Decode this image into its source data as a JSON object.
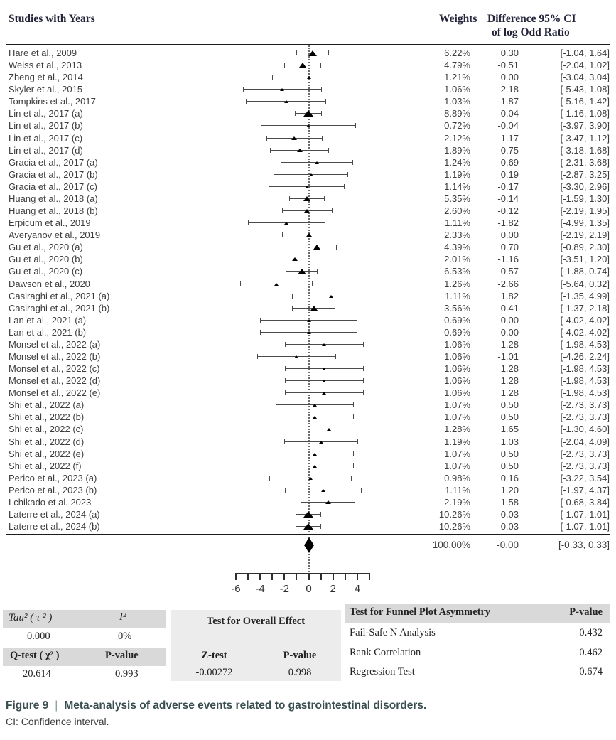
{
  "header": {
    "studies_col": "Studies with Years",
    "weights_col": "Weights",
    "effect_col_line1": "Difference 95% CI",
    "effect_col_line2": "of log Odd Ratio"
  },
  "chart_data": {
    "type": "scatter",
    "variant": "forest-plot",
    "title": "Meta-analysis of adverse events related to gastrointestinal disorders",
    "effect_measure": "Difference of log Odd Ratio",
    "zero_line": 0,
    "x_axis": {
      "range": [
        -6,
        5
      ],
      "minor_ticks": [
        -6,
        -5,
        -4,
        -3,
        -2,
        -1,
        0,
        1,
        2,
        3,
        4,
        5
      ],
      "labels": [
        {
          "v": -6,
          "t": "-6"
        },
        {
          "v": -4,
          "t": "-4"
        },
        {
          "v": -2,
          "t": "-2"
        },
        {
          "v": 0,
          "t": "0"
        },
        {
          "v": 2,
          "t": "2"
        },
        {
          "v": 4,
          "t": "4"
        }
      ]
    },
    "studies": [
      {
        "name": "Hare et al., 2009",
        "weight": "6.22%",
        "diff": "0.30",
        "ci": "[-1.04, 1.64]"
      },
      {
        "name": "Weiss et al., 2013",
        "weight": "4.79%",
        "diff": "-0.51",
        "ci": "[-2.04, 1.02]"
      },
      {
        "name": "Zheng et al., 2014",
        "weight": "1.21%",
        "diff": "0.00",
        "ci": "[-3.04, 3.04]"
      },
      {
        "name": "Skyler et al., 2015",
        "weight": "1.06%",
        "diff": "-2.18",
        "ci": "[-5.43, 1.08]"
      },
      {
        "name": "Tompkins et al., 2017",
        "weight": "1.03%",
        "diff": "-1.87",
        "ci": "[-5.16, 1.42]"
      },
      {
        "name": "Lin et al., 2017 (a)",
        "weight": "8.89%",
        "diff": "-0.04",
        "ci": "[-1.16, 1.08]"
      },
      {
        "name": "Lin et al., 2017 (b)",
        "weight": "0.72%",
        "diff": "-0.04",
        "ci": "[-3.97, 3.90]"
      },
      {
        "name": "Lin et al., 2017 (c)",
        "weight": "2.12%",
        "diff": "-1.17",
        "ci": "[-3.47, 1.12]"
      },
      {
        "name": "Lin et al., 2017 (d)",
        "weight": "1.89%",
        "diff": "-0.75",
        "ci": "[-3.18, 1.68]"
      },
      {
        "name": "Gracia et al., 2017 (a)",
        "weight": "1.24%",
        "diff": "0.69",
        "ci": "[-2.31, 3.68]"
      },
      {
        "name": "Gracia et al., 2017 (b)",
        "weight": "1.19%",
        "diff": "0.19",
        "ci": "[-2.87, 3.25]"
      },
      {
        "name": "Gracia et al., 2017 (c)",
        "weight": "1.14%",
        "diff": "-0.17",
        "ci": "[-3.30, 2.96]"
      },
      {
        "name": "Huang et al., 2018 (a)",
        "weight": "5.35%",
        "diff": "-0.14",
        "ci": "[-1.59, 1.30]"
      },
      {
        "name": "Huang et al., 2018 (b)",
        "weight": "2.60%",
        "diff": "-0.12",
        "ci": "[-2.19, 1.95]"
      },
      {
        "name": "Erpicum et al., 2019",
        "weight": "1.11%",
        "diff": "-1.82",
        "ci": "[-4.99, 1.35]"
      },
      {
        "name": "Averyanov et al., 2019",
        "weight": "2.33%",
        "diff": "0.00",
        "ci": "[-2.19, 2.19]"
      },
      {
        "name": "Gu et al., 2020 (a)",
        "weight": "4.39%",
        "diff": "0.70",
        "ci": "[-0.89, 2.30]"
      },
      {
        "name": "Gu et al., 2020 (b)",
        "weight": "2.01%",
        "diff": "-1.16",
        "ci": "[-3.51, 1.20]"
      },
      {
        "name": "Gu et al., 2020 (c)",
        "weight": "6.53%",
        "diff": "-0.57",
        "ci": "[-1.88, 0.74]"
      },
      {
        "name": "Dawson et al., 2020",
        "weight": "1.26%",
        "diff": "-2.66",
        "ci": "[-5.64, 0.32]"
      },
      {
        "name": "Casiraghi et al., 2021 (a)",
        "weight": "1.11%",
        "diff": "1.82",
        "ci": "[-1.35, 4.99]"
      },
      {
        "name": "Casiraghi et al., 2021 (b)",
        "weight": "3.56%",
        "diff": "0.41",
        "ci": "[-1.37, 2.18]"
      },
      {
        "name": "Lan et al., 2021 (a)",
        "weight": "0.69%",
        "diff": "0.00",
        "ci": "[-4.02, 4.02]"
      },
      {
        "name": "Lan et al., 2021 (b)",
        "weight": "0.69%",
        "diff": "0.00",
        "ci": "[-4.02, 4.02]"
      },
      {
        "name": "Monsel et al., 2022 (a)",
        "weight": "1.06%",
        "diff": "1.28",
        "ci": "[-1.98, 4.53]"
      },
      {
        "name": "Monsel et al., 2022 (b)",
        "weight": "1.06%",
        "diff": "-1.01",
        "ci": "[-4.26, 2.24]"
      },
      {
        "name": "Monsel et al., 2022 (c)",
        "weight": "1.06%",
        "diff": "1.28",
        "ci": "[-1.98, 4.53]"
      },
      {
        "name": "Monsel et al., 2022 (d)",
        "weight": "1.06%",
        "diff": "1.28",
        "ci": "[-1.98, 4.53]"
      },
      {
        "name": "Monsel et al., 2022 (e)",
        "weight": "1.06%",
        "diff": "1.28",
        "ci": "[-1.98, 4.53]"
      },
      {
        "name": "Shi et al., 2022 (a)",
        "weight": "1.07%",
        "diff": "0.50",
        "ci": "[-2.73, 3.73]"
      },
      {
        "name": "Shi et al., 2022 (b)",
        "weight": "1.07%",
        "diff": "0.50",
        "ci": "[-2.73, 3.73]"
      },
      {
        "name": "Shi et al., 2022 (c)",
        "weight": "1.28%",
        "diff": "1.65",
        "ci": "[-1.30, 4.60]"
      },
      {
        "name": "Shi et al., 2022 (d)",
        "weight": "1.19%",
        "diff": "1.03",
        "ci": "[-2.04, 4.09]"
      },
      {
        "name": "Shi et al., 2022 (e)",
        "weight": "1.07%",
        "diff": "0.50",
        "ci": "[-2.73, 3.73]"
      },
      {
        "name": "Shi et al., 2022 (f)",
        "weight": "1.07%",
        "diff": "0.50",
        "ci": "[-2.73, 3.73]"
      },
      {
        "name": "Perico et al., 2023 (a)",
        "weight": "0.98%",
        "diff": "0.16",
        "ci": "[-3.22, 3.54]"
      },
      {
        "name": "Perico et al., 2023 (b)",
        "weight": "1.11%",
        "diff": "1.20",
        "ci": "[-1.97, 4.37]"
      },
      {
        "name": "Lchikado et al. 2023",
        "weight": "2.19%",
        "diff": "1.58",
        "ci": "[-0.68, 3.84]"
      },
      {
        "name": "Laterre et al., 2024 (a)",
        "weight": "10.26%",
        "diff": "-0.03",
        "ci": "[-1.07, 1.01]"
      },
      {
        "name": "Laterre et al., 2024 (b)",
        "weight": "10.26%",
        "diff": "-0.03",
        "ci": "[-1.07, 1.01]"
      }
    ],
    "overall": {
      "weight": "100.00%",
      "diff": "-0.00",
      "ci": "[-0.33, 0.33]"
    }
  },
  "stats": {
    "heterogeneity": {
      "tau2_label": "Tau² ( τ ² )",
      "tau2": "0.000",
      "i2_label": "I²",
      "i2": "0%",
      "q_label": "Q-test ( χ² )",
      "q_p_label": "P-value",
      "q": "20.614",
      "q_p": "0.993"
    },
    "overall_test": {
      "title": "Test for Overall Effect",
      "z_label": "Z-test",
      "p_label": "P-value",
      "z": "-0.00272",
      "p": "0.998"
    },
    "funnel": {
      "title": "Test for Funnel Plot Asymmetry",
      "p_label": "P-value",
      "rows": [
        {
          "label": "Fail-Safe N Analysis",
          "p": "0.432"
        },
        {
          "label": "Rank Correlation",
          "p": "0.462"
        },
        {
          "label": "Regression Test",
          "p": "0.674"
        }
      ]
    }
  },
  "caption": {
    "figure_label": "Figure 9",
    "separator": "|",
    "title": "Meta-analysis of adverse events related to gastrointestinal disorders.",
    "footnote": "CI: Confidence interval."
  },
  "colors": {
    "caption_accent": "#3a4e50",
    "table_header_bg": "#d9d9d9",
    "middle_table_bg": "#ececec",
    "marker": "#000000",
    "ci_line": "#4a4a4a"
  }
}
